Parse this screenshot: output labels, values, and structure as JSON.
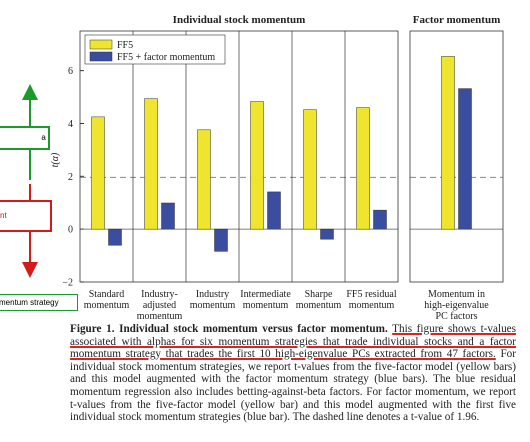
{
  "chart_data": [
    {
      "type": "bar",
      "title": "Individual stock momentum",
      "ylabel": "t(α)",
      "categories": [
        "Standard\nmomentum",
        "Industry-\nadjusted\nmomentum",
        "Industry\nmomentum",
        "Intermediate\nmomentum",
        "Sharpe\nmomentum",
        "FF5 residual\nmomentum"
      ],
      "series": [
        {
          "name": "FF5",
          "color": "#f0e52e",
          "values": [
            4.25,
            4.94,
            3.76,
            4.83,
            4.52,
            4.6
          ]
        },
        {
          "name": "FF5 + factor momentum",
          "color": "#3a4d9f",
          "values": [
            -0.61,
            0.99,
            -0.84,
            1.41,
            -0.38,
            0.72
          ]
        }
      ],
      "ylim": [
        -2,
        7.5
      ],
      "yticks": [
        {
          "value": -2,
          "label": "−2"
        },
        0,
        2,
        4,
        6
      ],
      "reference_line": 1.96,
      "legend": "upper left"
    },
    {
      "type": "bar",
      "title": "Factor momentum",
      "categories": [
        "Momentum in\nhigh-eigenvalue\nPC factors"
      ],
      "series": [
        {
          "color": "#f0e52e",
          "values": [
            6.54
          ]
        },
        {
          "color": "#3a4d9f",
          "values": [
            5.32
          ]
        }
      ],
      "ylim": [
        -2,
        7.5
      ],
      "reference_line": 1.96
    }
  ],
  "caption": {
    "label": "Figure 1. Individual stock momentum versus factor momentum.",
    "highlighted": "This figure shows t-values associated with alphas for six momentum strategies that trade individual stocks and a factor momentum strategy that trades the first 10 high-eigenvalue PCs extracted from 47 factors.",
    "body": "For individual stock momentum strategies, we report t-values from the five-factor model (yellow bars) and this model augmented with the factor momentum strategy (blue bars). The blue residual momentum regression also includes betting-against-beta factors. For factor momentum, we report t-values from the five-factor model (yellow bar) and this model augmented with the first five individual stock momentum strategies (blue bar). The dashed line denotes a t-value of 1.96."
  },
  "annotations": [
    "a",
    "nt",
    "mentum strategy"
  ]
}
